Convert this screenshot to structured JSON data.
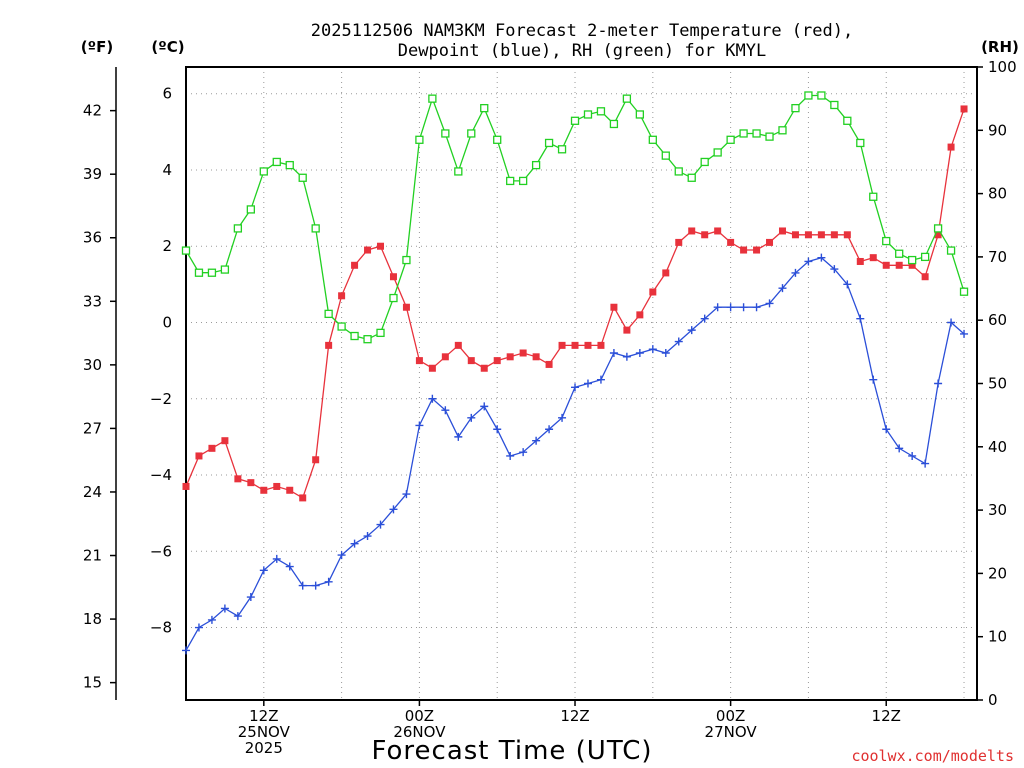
{
  "chart_data": {
    "type": "line",
    "title_line1": "2025112506 NAM3KM Forecast 2-meter Temperature (red),",
    "title_line2": "Dewpoint (blue), RH (green) for KMYL",
    "xlabel": "Forecast Time (UTC)",
    "credit": "coolwx.com/modelts",
    "units": {
      "f": "(ºF)",
      "c": "(ºC)",
      "rh": "(RH)"
    },
    "x_range": [
      0,
      61
    ],
    "c_range": [
      -9.9,
      6.7
    ],
    "rh_range": [
      0,
      100
    ],
    "f_ticks": [
      "15",
      "18",
      "21",
      "24",
      "27",
      "30",
      "33",
      "36",
      "39",
      "42"
    ],
    "c_ticks": [
      "−8",
      "−6",
      "−4",
      "−2",
      "0",
      "2",
      "4",
      "6"
    ],
    "rh_ticks": [
      "0",
      "10",
      "20",
      "30",
      "40",
      "50",
      "60",
      "70",
      "80",
      "90",
      "100"
    ],
    "x_ticks": [
      {
        "hour": 6,
        "lines": [
          "12Z",
          "25NOV",
          "2025"
        ]
      },
      {
        "hour": 18,
        "lines": [
          "00Z",
          "26NOV"
        ]
      },
      {
        "hour": 30,
        "lines": [
          "12Z"
        ]
      },
      {
        "hour": 42,
        "lines": [
          "00Z",
          "27NOV"
        ]
      },
      {
        "hour": 54,
        "lines": [
          "12Z"
        ]
      }
    ],
    "series": [
      {
        "name": "2-meter Temperature",
        "units": "°C",
        "color": "#e8323c",
        "marker": "filled-square",
        "values": [
          -4.3,
          -3.5,
          -3.3,
          -3.1,
          -4.1,
          -4.2,
          -4.4,
          -4.3,
          -4.4,
          -4.6,
          -3.6,
          -0.6,
          0.7,
          1.5,
          1.9,
          2.0,
          1.2,
          0.4,
          -1.0,
          -1.2,
          -0.9,
          -0.6,
          -1.0,
          -1.2,
          -1.0,
          -0.9,
          -0.8,
          -0.9,
          -1.1,
          -0.6,
          -0.6,
          -0.6,
          -0.6,
          0.4,
          -0.2,
          0.2,
          0.8,
          1.3,
          2.1,
          2.4,
          2.3,
          2.4,
          2.1,
          1.9,
          1.9,
          2.1,
          2.4,
          2.3,
          2.3,
          2.3,
          2.3,
          2.3,
          1.6,
          1.7,
          1.5,
          1.5,
          1.5,
          1.2,
          2.3,
          4.6,
          5.6
        ]
      },
      {
        "name": "Dewpoint",
        "units": "°C",
        "color": "#2b4fd8",
        "marker": "plus",
        "values": [
          -8.6,
          -8.0,
          -7.8,
          -7.5,
          -7.7,
          -7.2,
          -6.5,
          -6.2,
          -6.4,
          -6.9,
          -6.9,
          -6.8,
          -6.1,
          -5.8,
          -5.6,
          -5.3,
          -4.9,
          -4.5,
          -2.7,
          -2.0,
          -2.3,
          -3.0,
          -2.5,
          -2.2,
          -2.8,
          -3.5,
          -3.4,
          -3.1,
          -2.8,
          -2.5,
          -1.7,
          -1.6,
          -1.5,
          -0.8,
          -0.9,
          -0.8,
          -0.7,
          -0.8,
          -0.5,
          -0.2,
          0.1,
          0.4,
          0.4,
          0.4,
          0.4,
          0.5,
          0.9,
          1.3,
          1.6,
          1.7,
          1.4,
          1.0,
          0.1,
          -1.5,
          -2.8,
          -3.3,
          -3.5,
          -3.7,
          -1.6,
          0.0,
          -0.3
        ]
      },
      {
        "name": "RH",
        "units": "%",
        "color": "#22d022",
        "marker": "open-square",
        "values": [
          71.0,
          67.5,
          67.5,
          68.0,
          74.5,
          77.5,
          83.5,
          85.0,
          84.5,
          82.5,
          74.5,
          61.0,
          59.0,
          57.5,
          57.0,
          58.0,
          63.5,
          69.5,
          88.5,
          95.0,
          89.5,
          83.5,
          89.5,
          93.5,
          88.5,
          82.0,
          82.0,
          84.5,
          88.0,
          87.0,
          91.5,
          92.5,
          93.0,
          91.0,
          95.0,
          92.5,
          88.5,
          86.0,
          83.5,
          82.5,
          85.0,
          86.5,
          88.5,
          89.5,
          89.5,
          89.0,
          90.0,
          93.5,
          95.5,
          95.5,
          94.0,
          91.5,
          88.0,
          79.5,
          72.5,
          70.5,
          69.5,
          70.0,
          74.5,
          71.0,
          64.5
        ]
      }
    ]
  }
}
